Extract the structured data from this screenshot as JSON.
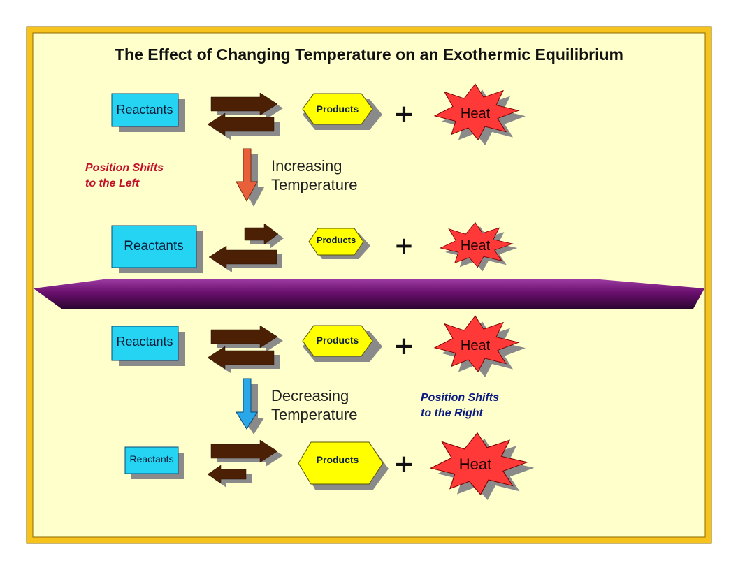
{
  "title": "The Effect of Changing Temperature on an Exothermic Equilibrium",
  "labels": {
    "reactants": "Reactants",
    "products": "Products",
    "plus": "+",
    "heat": "Heat"
  },
  "increase": {
    "line1": "Increasing",
    "line2": "Temperature",
    "shift_line1": "Position Shifts",
    "shift_line2": "to the Left",
    "shift_color": "#c0102a",
    "arrow_color": "#e8603a"
  },
  "decrease": {
    "line1": "Decreasing",
    "line2": "Temperature",
    "shift_line1": "Position Shifts",
    "shift_line2": "to the Right",
    "shift_color": "#0a1a80",
    "arrow_color": "#29a7e8"
  },
  "colors": {
    "background": "#ffffcc",
    "frame": "#f6c21c",
    "reactants_box": "#25d4f2",
    "products_box": "#ffff00",
    "heat_burst": "#ff3838",
    "equilibrium_arrow": "#4b2005",
    "shadow": "#8a8a8a",
    "divider": "#6a0f6e"
  }
}
